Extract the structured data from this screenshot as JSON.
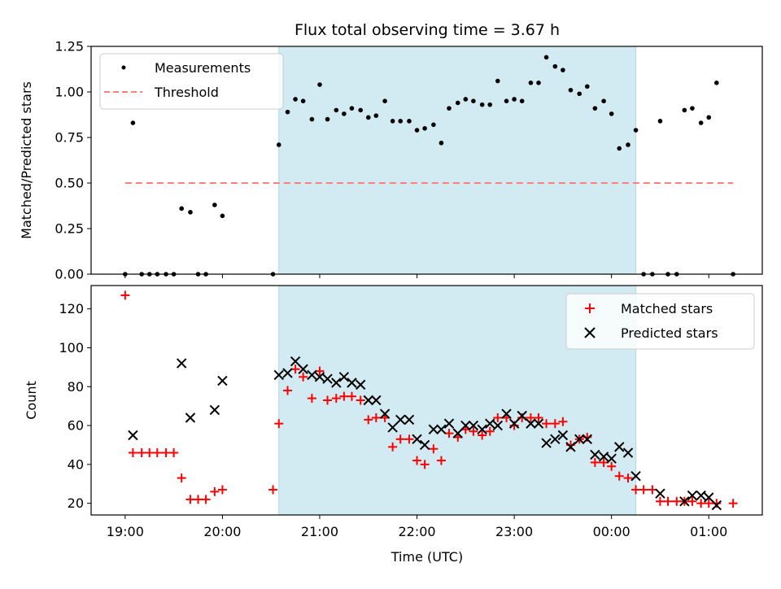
{
  "chart_data": {
    "title": "Flux total observing time = 3.67 h",
    "x_unit": "hours since 19:00 UTC",
    "x_range": [
      -0.35,
      6.55
    ],
    "observing_window": [
      1.58,
      5.25
    ],
    "xlabel": "Time (UTC)",
    "x_ticks": [
      {
        "v": 0,
        "label": "19:00"
      },
      {
        "v": 1,
        "label": "20:00"
      },
      {
        "v": 2,
        "label": "21:00"
      },
      {
        "v": 3,
        "label": "22:00"
      },
      {
        "v": 4,
        "label": "23:00"
      },
      {
        "v": 5,
        "label": "00:00"
      },
      {
        "v": 6,
        "label": "01:00"
      }
    ],
    "colors": {
      "window": "#add8e6",
      "matched": "#ff0000",
      "predicted": "#000000",
      "threshold": "#ff7f7f",
      "measurement": "#000000"
    },
    "panels": [
      {
        "type": "scatter",
        "ylabel": "Matched/Predicted stars",
        "ylim": [
          0,
          1.25
        ],
        "y_ticks": [
          0,
          0.25,
          0.5,
          0.75,
          1.0,
          1.25
        ],
        "y_tick_labels": [
          "0.00",
          "0.25",
          "0.50",
          "0.75",
          "1.00",
          "1.25"
        ],
        "legend": {
          "placement": "upper-left",
          "entries": [
            "Measurements",
            "Threshold"
          ]
        },
        "threshold": {
          "y": 0.5,
          "x": [
            0,
            6.25
          ]
        },
        "measurements": [
          [
            0,
            0
          ],
          [
            0.08,
            0.83
          ],
          [
            0.17,
            0
          ],
          [
            0.25,
            0
          ],
          [
            0.33,
            0
          ],
          [
            0.42,
            0
          ],
          [
            0.5,
            0
          ],
          [
            0.58,
            0.36
          ],
          [
            0.67,
            0.34
          ],
          [
            0.75,
            0
          ],
          [
            0.83,
            0
          ],
          [
            0.92,
            0.38
          ],
          [
            1.0,
            0.32
          ],
          [
            1.52,
            0
          ],
          [
            1.58,
            0.71
          ],
          [
            1.67,
            0.89
          ],
          [
            1.75,
            0.96
          ],
          [
            1.83,
            0.95
          ],
          [
            1.92,
            0.85
          ],
          [
            2.0,
            1.04
          ],
          [
            2.08,
            0.85
          ],
          [
            2.17,
            0.9
          ],
          [
            2.25,
            0.88
          ],
          [
            2.33,
            0.91
          ],
          [
            2.42,
            0.9
          ],
          [
            2.5,
            0.86
          ],
          [
            2.58,
            0.87
          ],
          [
            2.67,
            0.95
          ],
          [
            2.75,
            0.84
          ],
          [
            2.83,
            0.84
          ],
          [
            2.92,
            0.84
          ],
          [
            3.0,
            0.79
          ],
          [
            3.08,
            0.8
          ],
          [
            3.17,
            0.82
          ],
          [
            3.25,
            0.72
          ],
          [
            3.33,
            0.91
          ],
          [
            3.42,
            0.94
          ],
          [
            3.5,
            0.96
          ],
          [
            3.58,
            0.95
          ],
          [
            3.67,
            0.93
          ],
          [
            3.75,
            0.93
          ],
          [
            3.83,
            1.06
          ],
          [
            3.92,
            0.95
          ],
          [
            4.0,
            0.96
          ],
          [
            4.08,
            0.95
          ],
          [
            4.17,
            1.05
          ],
          [
            4.25,
            1.05
          ],
          [
            4.33,
            1.19
          ],
          [
            4.42,
            1.14
          ],
          [
            4.5,
            1.12
          ],
          [
            4.58,
            1.01
          ],
          [
            4.67,
            0.99
          ],
          [
            4.75,
            1.03
          ],
          [
            4.83,
            0.91
          ],
          [
            4.92,
            0.95
          ],
          [
            5.0,
            0.88
          ],
          [
            5.08,
            0.69
          ],
          [
            5.17,
            0.71
          ],
          [
            5.25,
            0.79
          ],
          [
            5.33,
            0
          ],
          [
            5.42,
            0
          ],
          [
            5.5,
            0.84
          ],
          [
            5.58,
            0
          ],
          [
            5.67,
            0
          ],
          [
            5.75,
            0.9
          ],
          [
            5.83,
            0.91
          ],
          [
            5.92,
            0.83
          ],
          [
            6.0,
            0.86
          ],
          [
            6.08,
            1.05
          ],
          [
            6.25,
            0
          ]
        ]
      },
      {
        "type": "scatter",
        "ylabel": "Count",
        "ylim": [
          14,
          132
        ],
        "y_ticks": [
          20,
          40,
          60,
          80,
          100,
          120
        ],
        "y_tick_labels": [
          "20",
          "40",
          "60",
          "80",
          "100",
          "120"
        ],
        "legend": {
          "placement": "upper-right",
          "entries": [
            "Matched stars",
            "Predicted stars"
          ]
        },
        "matched": [
          [
            0,
            127
          ],
          [
            0.08,
            46
          ],
          [
            0.17,
            46
          ],
          [
            0.25,
            46
          ],
          [
            0.33,
            46
          ],
          [
            0.42,
            46
          ],
          [
            0.5,
            46
          ],
          [
            0.58,
            33
          ],
          [
            0.67,
            22
          ],
          [
            0.75,
            22
          ],
          [
            0.83,
            22
          ],
          [
            0.92,
            26
          ],
          [
            1.0,
            27
          ],
          [
            1.52,
            27
          ],
          [
            1.58,
            61
          ],
          [
            1.67,
            78
          ],
          [
            1.75,
            89
          ],
          [
            1.83,
            85
          ],
          [
            1.92,
            74
          ],
          [
            2.0,
            88
          ],
          [
            2.08,
            73
          ],
          [
            2.17,
            74
          ],
          [
            2.25,
            75
          ],
          [
            2.33,
            75
          ],
          [
            2.42,
            73
          ],
          [
            2.5,
            63
          ],
          [
            2.58,
            64
          ],
          [
            2.67,
            64
          ],
          [
            2.75,
            49
          ],
          [
            2.83,
            53
          ],
          [
            2.92,
            53
          ],
          [
            3.0,
            42
          ],
          [
            3.08,
            40
          ],
          [
            3.17,
            48
          ],
          [
            3.25,
            42
          ],
          [
            3.33,
            56
          ],
          [
            3.42,
            54
          ],
          [
            3.5,
            58
          ],
          [
            3.58,
            57
          ],
          [
            3.67,
            55
          ],
          [
            3.75,
            57
          ],
          [
            3.83,
            64
          ],
          [
            3.92,
            64
          ],
          [
            4.0,
            60
          ],
          [
            4.08,
            64
          ],
          [
            4.17,
            64
          ],
          [
            4.25,
            64
          ],
          [
            4.33,
            61
          ],
          [
            4.42,
            61
          ],
          [
            4.5,
            62
          ],
          [
            4.58,
            50
          ],
          [
            4.67,
            53
          ],
          [
            4.75,
            54
          ],
          [
            4.83,
            41
          ],
          [
            4.92,
            41
          ],
          [
            5.0,
            39
          ],
          [
            5.08,
            34
          ],
          [
            5.17,
            33
          ],
          [
            5.25,
            27
          ],
          [
            5.33,
            27
          ],
          [
            5.42,
            27
          ],
          [
            5.5,
            21
          ],
          [
            5.58,
            21
          ],
          [
            5.67,
            21
          ],
          [
            5.75,
            21
          ],
          [
            5.83,
            21
          ],
          [
            5.92,
            20
          ],
          [
            6.0,
            20
          ],
          [
            6.08,
            20
          ],
          [
            6.25,
            20
          ]
        ],
        "predicted": [
          [
            0.08,
            55
          ],
          [
            0.58,
            92
          ],
          [
            0.67,
            64
          ],
          [
            0.92,
            68
          ],
          [
            1.0,
            83
          ],
          [
            1.58,
            86
          ],
          [
            1.67,
            87
          ],
          [
            1.75,
            93
          ],
          [
            1.83,
            89
          ],
          [
            1.92,
            86
          ],
          [
            2.0,
            85
          ],
          [
            2.08,
            84
          ],
          [
            2.17,
            82
          ],
          [
            2.25,
            85
          ],
          [
            2.33,
            82
          ],
          [
            2.42,
            81
          ],
          [
            2.5,
            73
          ],
          [
            2.58,
            73
          ],
          [
            2.67,
            66
          ],
          [
            2.75,
            59
          ],
          [
            2.83,
            63
          ],
          [
            2.92,
            63
          ],
          [
            3.0,
            53
          ],
          [
            3.08,
            50
          ],
          [
            3.17,
            58
          ],
          [
            3.25,
            58
          ],
          [
            3.33,
            61
          ],
          [
            3.42,
            56
          ],
          [
            3.5,
            60
          ],
          [
            3.58,
            60
          ],
          [
            3.67,
            58
          ],
          [
            3.75,
            61
          ],
          [
            3.83,
            60
          ],
          [
            3.92,
            66
          ],
          [
            4.0,
            61
          ],
          [
            4.08,
            65
          ],
          [
            4.17,
            61
          ],
          [
            4.25,
            61
          ],
          [
            4.33,
            51
          ],
          [
            4.42,
            53
          ],
          [
            4.5,
            55
          ],
          [
            4.58,
            49
          ],
          [
            4.67,
            53
          ],
          [
            4.75,
            53
          ],
          [
            4.83,
            45
          ],
          [
            4.92,
            44
          ],
          [
            5.0,
            43
          ],
          [
            5.08,
            49
          ],
          [
            5.17,
            46
          ],
          [
            5.25,
            34
          ],
          [
            5.5,
            25
          ],
          [
            5.75,
            21
          ],
          [
            5.83,
            24
          ],
          [
            5.92,
            24
          ],
          [
            6.0,
            23
          ],
          [
            6.08,
            19
          ]
        ]
      }
    ]
  }
}
